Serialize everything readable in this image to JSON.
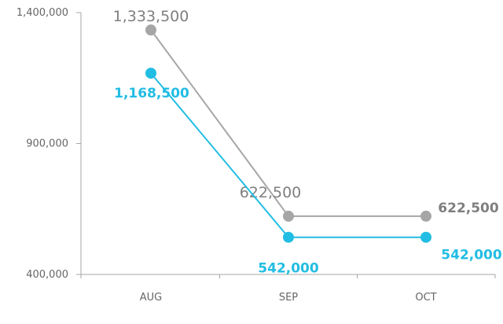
{
  "chart_data": {
    "type": "line",
    "categories": [
      "AUG",
      "SEP",
      "OCT"
    ],
    "y_ticks": [
      "1,400,000",
      "900,000",
      "400,000"
    ],
    "y_tick_values": [
      1400000,
      900000,
      400000
    ],
    "ylim": [
      400000,
      1400000
    ],
    "grid": false,
    "series": [
      {
        "color": "#a6a6a6",
        "values": [
          1333500,
          622500,
          622500
        ],
        "labels": [
          "1,333,500",
          "622,500",
          "622,500"
        ]
      },
      {
        "color": "#22bde3",
        "values": [
          1168500,
          542000,
          542000
        ],
        "labels": [
          "1,168,500",
          "542,000",
          "542,000"
        ]
      }
    ]
  }
}
